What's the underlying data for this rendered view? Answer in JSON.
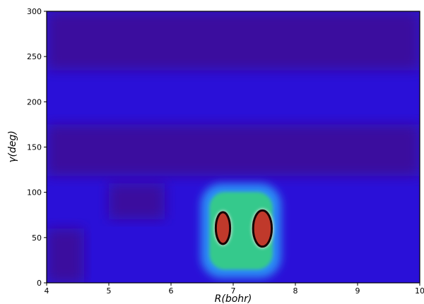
{
  "chart_data": {
    "type": "heatmap",
    "title": "",
    "xlabel": "R(bohr)",
    "ylabel": "γ(deg)",
    "xlim": [
      4,
      10
    ],
    "ylim": [
      0,
      300
    ],
    "x_ticks": [
      "4",
      "5",
      "6",
      "7",
      "8",
      "9",
      "10"
    ],
    "y_ticks": [
      "0",
      "50",
      "100",
      "150",
      "200",
      "250",
      "300"
    ],
    "grid": false,
    "colors": {
      "background_level": "#2a10d8",
      "low_level": "#3b0f9e",
      "mid_level": "#35c98c",
      "high_level": "#c0392b",
      "peak_level": "#150505"
    },
    "regions": [
      {
        "level": "low",
        "x": [
          4.0,
          10.0
        ],
        "y": [
          235,
          300
        ]
      },
      {
        "level": "low",
        "x": [
          4.0,
          10.0
        ],
        "y": [
          118,
          175
        ]
      },
      {
        "level": "low",
        "x": [
          5.0,
          5.9
        ],
        "y": [
          70,
          110
        ]
      },
      {
        "level": "low",
        "x": [
          4.0,
          4.6
        ],
        "y": [
          0,
          60
        ]
      },
      {
        "level": "mid",
        "x": [
          6.55,
          7.7
        ],
        "y": [
          10,
          105
        ]
      },
      {
        "level": "high",
        "x": [
          6.72,
          6.95
        ],
        "y": [
          43,
          78
        ]
      },
      {
        "level": "high",
        "x": [
          7.32,
          7.62
        ],
        "y": [
          40,
          80
        ]
      }
    ]
  }
}
